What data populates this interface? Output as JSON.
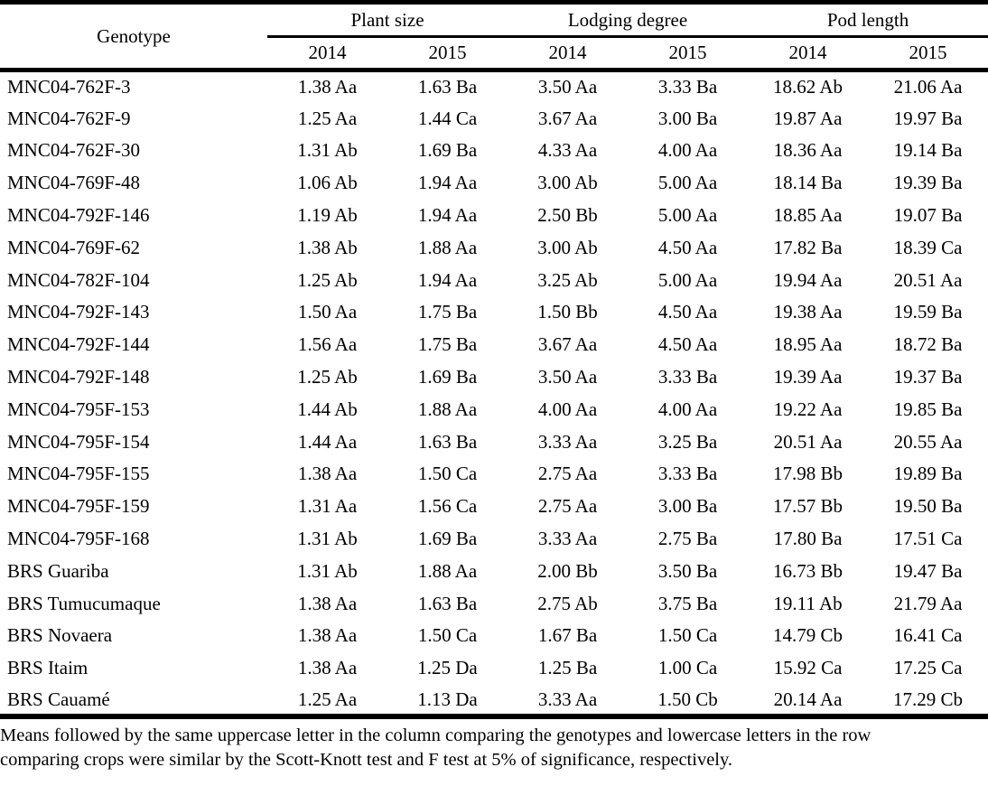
{
  "table": {
    "header": {
      "genotype_label": "Genotype",
      "groups": [
        {
          "label": "Plant size",
          "years": [
            "2014",
            "2015"
          ]
        },
        {
          "label": "Lodging degree",
          "years": [
            "2014",
            "2015"
          ]
        },
        {
          "label": "Pod length",
          "years": [
            "2014",
            "2015"
          ]
        }
      ]
    },
    "rows": [
      [
        "MNC04-762F-3",
        "1.38 Aa",
        "1.63 Ba",
        "3.50 Aa",
        "3.33 Ba",
        "18.62 Ab",
        "21.06 Aa"
      ],
      [
        "MNC04-762F-9",
        "1.25 Aa",
        "1.44 Ca",
        "3.67 Aa",
        "3.00 Ba",
        "19.87 Aa",
        "19.97 Ba"
      ],
      [
        "MNC04-762F-30",
        "1.31 Ab",
        "1.69 Ba",
        "4.33 Aa",
        "4.00 Aa",
        "18.36 Aa",
        "19.14 Ba"
      ],
      [
        "MNC04-769F-48",
        "1.06 Ab",
        "1.94 Aa",
        "3.00 Ab",
        "5.00 Aa",
        "18.14 Ba",
        "19.39 Ba"
      ],
      [
        "MNC04-792F-146",
        "1.19 Ab",
        "1.94 Aa",
        "2.50 Bb",
        "5.00 Aa",
        "18.85 Aa",
        "19.07 Ba"
      ],
      [
        "MNC04-769F-62",
        "1.38 Ab",
        "1.88 Aa",
        "3.00 Ab",
        "4.50 Aa",
        "17.82 Ba",
        "18.39 Ca"
      ],
      [
        "MNC04-782F-104",
        "1.25 Ab",
        "1.94 Aa",
        "3.25 Ab",
        "5.00 Aa",
        "19.94 Aa",
        "20.51 Aa"
      ],
      [
        "MNC04-792F-143",
        "1.50 Aa",
        "1.75 Ba",
        "1.50 Bb",
        "4.50 Aa",
        "19.38 Aa",
        "19.59 Ba"
      ],
      [
        "MNC04-792F-144",
        "1.56 Aa",
        "1.75 Ba",
        "3.67 Aa",
        "4.50 Aa",
        "18.95 Aa",
        "18.72 Ba"
      ],
      [
        "MNC04-792F-148",
        "1.25 Ab",
        "1.69 Ba",
        "3.50 Aa",
        "3.33 Ba",
        "19.39 Aa",
        "19.37 Ba"
      ],
      [
        "MNC04-795F-153",
        "1.44 Ab",
        "1.88 Aa",
        "4.00 Aa",
        "4.00 Aa",
        "19.22 Aa",
        "19.85 Ba"
      ],
      [
        "MNC04-795F-154",
        "1.44 Aa",
        "1.63 Ba",
        "3.33 Aa",
        "3.25 Ba",
        "20.51 Aa",
        "20.55 Aa"
      ],
      [
        "MNC04-795F-155",
        "1.38 Aa",
        "1.50 Ca",
        "2.75 Aa",
        "3.33 Ba",
        "17.98 Bb",
        "19.89 Ba"
      ],
      [
        "MNC04-795F-159",
        "1.31 Aa",
        "1.56 Ca",
        "2.75 Aa",
        "3.00 Ba",
        "17.57 Bb",
        "19.50 Ba"
      ],
      [
        "MNC04-795F-168",
        "1.31 Ab",
        "1.69 Ba",
        "3.33 Aa",
        "2.75 Ba",
        "17.80 Ba",
        "17.51 Ca"
      ],
      [
        "BRS Guariba",
        "1.31 Ab",
        "1.88 Aa",
        "2.00 Bb",
        "3.50 Ba",
        "16.73 Bb",
        "19.47 Ba"
      ],
      [
        "BRS Tumucumaque",
        "1.38 Aa",
        "1.63 Ba",
        "2.75 Ab",
        "3.75 Ba",
        "19.11 Ab",
        "21.79 Aa"
      ],
      [
        "BRS Novaera",
        "1.38 Aa",
        "1.50 Ca",
        "1.67 Ba",
        "1.50 Ca",
        "14.79 Cb",
        "16.41 Ca"
      ],
      [
        "BRS Itaim",
        "1.38 Aa",
        "1.25 Da",
        "1.25 Ba",
        "1.00 Ca",
        "15.92 Ca",
        "17.25 Ca"
      ],
      [
        "BRS Cauamé",
        "1.25 Aa",
        "1.13 Da",
        "3.33 Aa",
        "1.50 Cb",
        "20.14 Aa",
        "17.29 Cb"
      ]
    ],
    "footnote_lines": [
      "Means followed by the same uppercase letter in the column comparing the genotypes and lowercase letters in the row",
      "comparing crops were similar by the Scott-Knott test and F test at 5% of significance, respectively."
    ]
  }
}
